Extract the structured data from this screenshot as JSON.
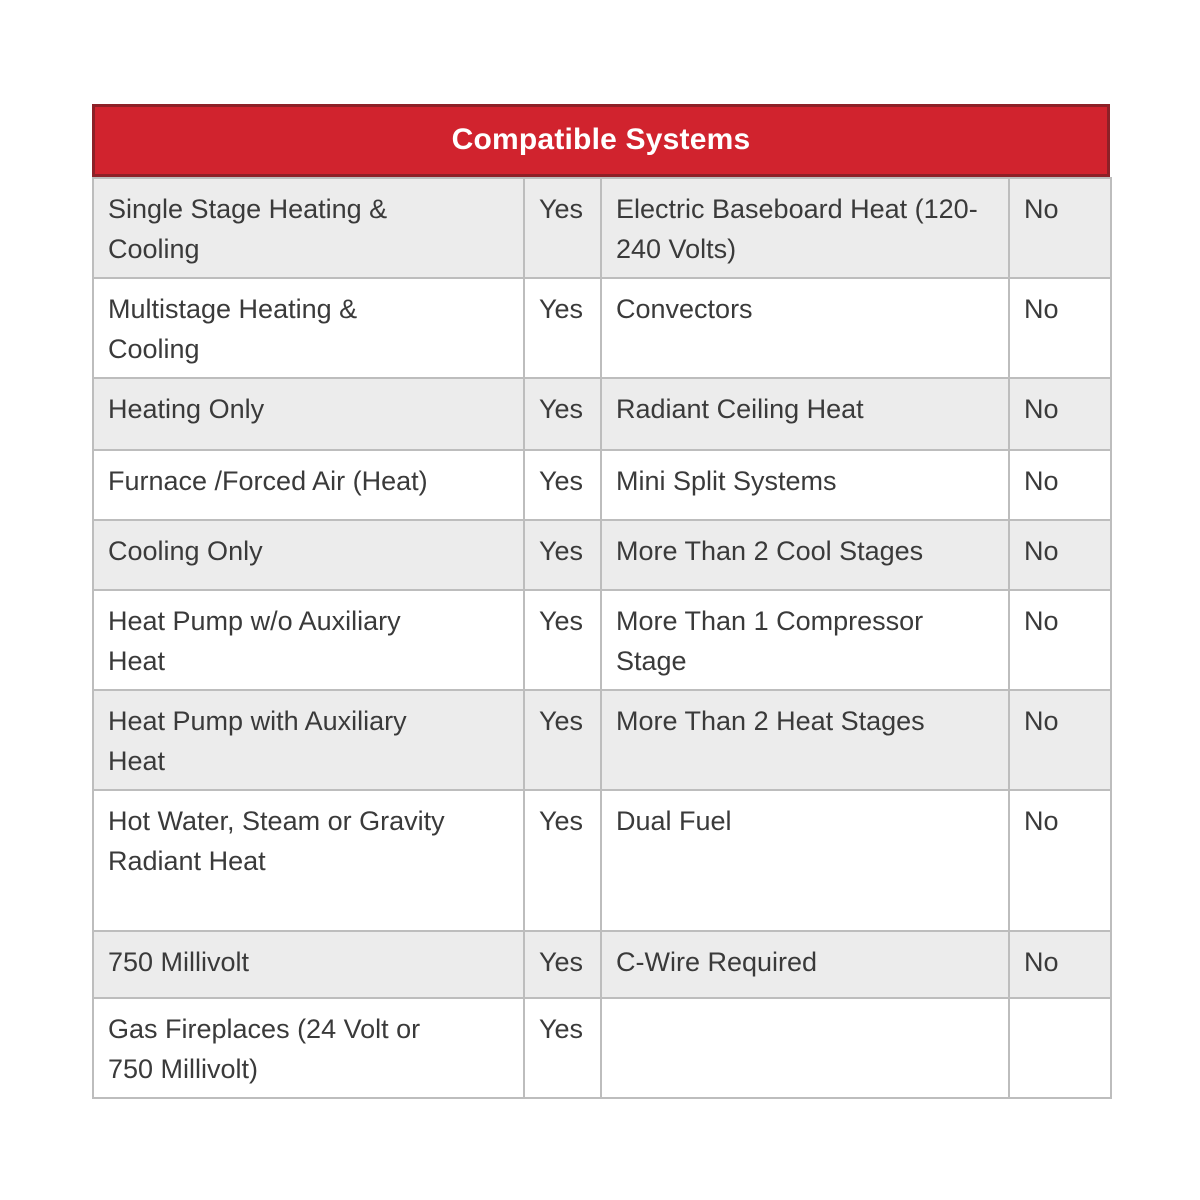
{
  "title": "Compatible Systems",
  "colors": {
    "header_bg": "#d1232e",
    "header_border": "#8d2027",
    "header_text": "#ffffff",
    "row_alt_bg": "#ececec",
    "row_bg": "#ffffff",
    "grid_border": "#bdbdbd",
    "text": "#3a3a3a"
  },
  "table": {
    "rows": [
      {
        "system_left": "Single Stage Heating & Cooling",
        "compat_left": "Yes",
        "system_right": "Electric Baseboard Heat (120-240 Volts)",
        "compat_right": "No"
      },
      {
        "system_left": "Multistage Heating & Cooling",
        "compat_left": "Yes",
        "system_right": "Convectors",
        "compat_right": "No"
      },
      {
        "system_left": "Heating Only",
        "compat_left": "Yes",
        "system_right": "Radiant Ceiling Heat",
        "compat_right": "No"
      },
      {
        "system_left": "Furnace /Forced Air (Heat)",
        "compat_left": "Yes",
        "system_right": "Mini Split Systems",
        "compat_right": "No"
      },
      {
        "system_left": "Cooling Only",
        "compat_left": "Yes",
        "system_right": "More Than 2 Cool Stages",
        "compat_right": "No"
      },
      {
        "system_left": "Heat Pump w/o Auxiliary Heat",
        "compat_left": "Yes",
        "system_right": "More Than 1 Compressor Stage",
        "compat_right": "No"
      },
      {
        "system_left": "Heat Pump with Auxiliary Heat",
        "compat_left": "Yes",
        "system_right": "More Than 2 Heat Stages",
        "compat_right": "No"
      },
      {
        "system_left": "Hot Water, Steam or Gravity Radiant Heat",
        "compat_left": "Yes",
        "system_right": "Dual Fuel",
        "compat_right": "No"
      },
      {
        "system_left": "750 Millivolt",
        "compat_left": "Yes",
        "system_right": "C-Wire Required",
        "compat_right": "No"
      },
      {
        "system_left": "Gas Fireplaces (24 Volt or 750 Millivolt)",
        "compat_left": "Yes",
        "system_right": "",
        "compat_right": ""
      }
    ]
  }
}
